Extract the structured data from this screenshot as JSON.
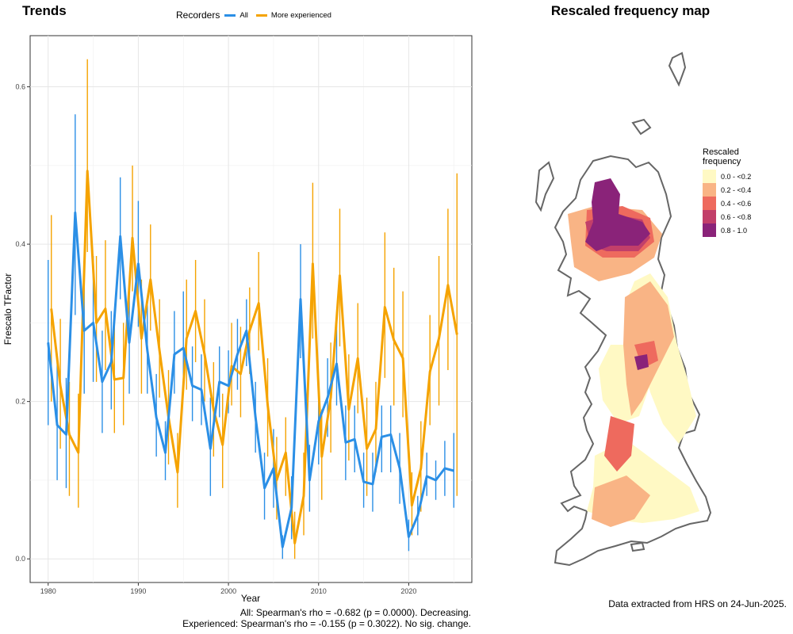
{
  "titles": {
    "left": "Trends",
    "right": "Rescaled frequency map"
  },
  "legend": {
    "title": "Recorders",
    "all_label": "All",
    "exp_label": "More experienced",
    "all_color": "#2b8fe6",
    "exp_color": "#f5a300"
  },
  "stats": {
    "line1": "All: Spearman's rho = -0.682 (p = 0.0000). Decreasing.",
    "line2": "Experienced: Spearman's rho = -0.155 (p = 0.3022). No sig. change."
  },
  "credit": "Data extracted from HRS on 24-Jun-2025.",
  "map_legend": {
    "title_line1": "Rescaled",
    "title_line2": "frequency",
    "items": [
      {
        "label": "0.0 - <0.2",
        "color": "#fff9c4"
      },
      {
        "label": "0.2 - <0.4",
        "color": "#f9b485"
      },
      {
        "label": "0.4 - <0.6",
        "color": "#ee6a5e"
      },
      {
        "label": "0.6 - <0.8",
        "color": "#c23f6a"
      },
      {
        "label": "0.8 - 1.0",
        "color": "#8a2379"
      }
    ]
  },
  "chart_data": {
    "type": "line",
    "title": "Trends",
    "xlabel": "Year",
    "ylabel": "Frescalo TFactor",
    "xlim": [
      1978,
      2027
    ],
    "ylim": [
      -0.03,
      0.665
    ],
    "xticks": [
      1980,
      1990,
      2000,
      2010,
      2020
    ],
    "yticks": [
      0.0,
      0.2,
      0.4,
      0.6
    ],
    "grid": true,
    "legend_position": "top",
    "x": [
      1980,
      1981,
      1982,
      1983,
      1984,
      1985,
      1986,
      1987,
      1988,
      1989,
      1990,
      1991,
      1992,
      1993,
      1994,
      1995,
      1996,
      1997,
      1998,
      1999,
      2000,
      2001,
      2002,
      2003,
      2004,
      2005,
      2006,
      2007,
      2008,
      2009,
      2010,
      2011,
      2012,
      2013,
      2014,
      2015,
      2016,
      2017,
      2018,
      2019,
      2020,
      2021,
      2022,
      2023,
      2024,
      2025
    ],
    "series": [
      {
        "name": "All",
        "values": [
          0.275,
          0.17,
          0.158,
          0.44,
          0.29,
          0.3,
          0.225,
          0.25,
          0.41,
          0.275,
          0.375,
          0.265,
          0.18,
          0.135,
          0.26,
          0.268,
          0.22,
          0.215,
          0.14,
          0.225,
          0.22,
          0.26,
          0.29,
          0.18,
          0.09,
          0.115,
          0.015,
          0.065,
          0.33,
          0.1,
          0.175,
          0.205,
          0.248,
          0.148,
          0.152,
          0.098,
          0.095,
          0.155,
          0.158,
          0.115,
          0.028,
          0.055,
          0.105,
          0.1,
          0.115,
          0.112
        ],
        "lower": [
          0.17,
          0.1,
          0.09,
          0.31,
          0.21,
          0.225,
          0.16,
          0.19,
          0.33,
          0.21,
          0.295,
          0.21,
          0.13,
          0.1,
          0.21,
          0.22,
          0.175,
          0.17,
          0.08,
          0.18,
          0.185,
          0.215,
          0.245,
          0.135,
          0.05,
          0.065,
          0.0,
          0.025,
          0.255,
          0.06,
          0.12,
          0.155,
          0.195,
          0.1,
          0.11,
          0.065,
          0.06,
          0.11,
          0.11,
          0.07,
          0.01,
          0.03,
          0.08,
          0.075,
          0.08,
          0.065
        ],
        "upper": [
          0.38,
          0.25,
          0.23,
          0.565,
          0.37,
          0.385,
          0.29,
          0.315,
          0.485,
          0.345,
          0.455,
          0.33,
          0.235,
          0.175,
          0.315,
          0.34,
          0.27,
          0.26,
          0.205,
          0.27,
          0.265,
          0.305,
          0.33,
          0.225,
          0.135,
          0.165,
          0.03,
          0.105,
          0.4,
          0.145,
          0.23,
          0.255,
          0.305,
          0.195,
          0.195,
          0.135,
          0.135,
          0.195,
          0.195,
          0.16,
          0.05,
          0.08,
          0.135,
          0.125,
          0.15,
          0.16
        ]
      },
      {
        "name": "More experienced",
        "values": [
          0.318,
          0.22,
          0.158,
          0.135,
          0.493,
          0.3,
          0.318,
          0.228,
          0.23,
          0.408,
          0.28,
          0.355,
          0.265,
          0.18,
          0.11,
          0.28,
          0.315,
          0.26,
          0.19,
          0.145,
          0.245,
          0.235,
          0.29,
          0.325,
          0.195,
          0.1,
          0.135,
          0.02,
          0.08,
          0.375,
          0.13,
          0.205,
          0.36,
          0.19,
          0.255,
          0.14,
          0.165,
          0.32,
          0.278,
          0.255,
          0.068,
          0.115,
          0.238,
          0.28,
          0.348,
          0.285
        ],
        "lower": [
          0.2,
          0.14,
          0.08,
          0.065,
          0.39,
          0.225,
          0.24,
          0.16,
          0.17,
          0.34,
          0.21,
          0.29,
          0.205,
          0.12,
          0.065,
          0.215,
          0.25,
          0.2,
          0.13,
          0.09,
          0.195,
          0.18,
          0.235,
          0.265,
          0.13,
          0.05,
          0.08,
          0.0,
          0.03,
          0.28,
          0.075,
          0.135,
          0.27,
          0.125,
          0.185,
          0.08,
          0.11,
          0.23,
          0.195,
          0.18,
          0.03,
          0.06,
          0.17,
          0.195,
          0.24,
          0.08
        ],
        "upper": [
          0.437,
          0.305,
          0.225,
          0.21,
          0.635,
          0.385,
          0.405,
          0.305,
          0.3,
          0.5,
          0.355,
          0.425,
          0.33,
          0.24,
          0.16,
          0.355,
          0.38,
          0.33,
          0.25,
          0.21,
          0.3,
          0.295,
          0.345,
          0.39,
          0.255,
          0.155,
          0.18,
          0.06,
          0.135,
          0.478,
          0.19,
          0.275,
          0.445,
          0.26,
          0.325,
          0.205,
          0.225,
          0.415,
          0.37,
          0.34,
          0.11,
          0.175,
          0.31,
          0.385,
          0.445,
          0.49
        ]
      }
    ]
  }
}
